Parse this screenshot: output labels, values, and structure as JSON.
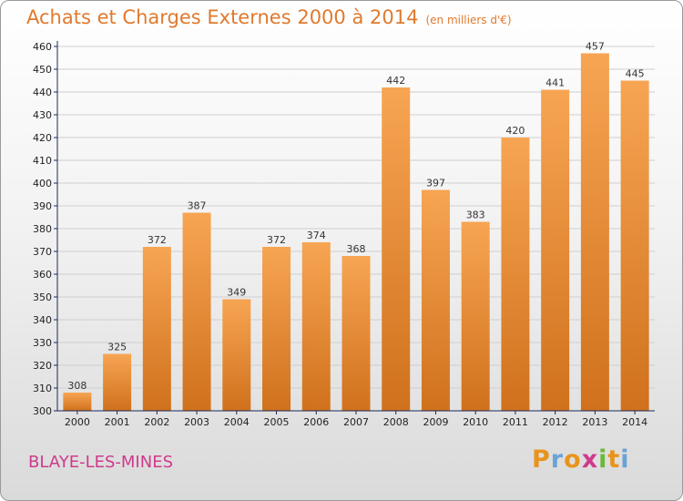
{
  "header": {
    "title": "Achats et Charges Externes 2000 à 2014",
    "subtitle": "(en milliers d'€)"
  },
  "location": {
    "name": "BLAYE-LES-MINES"
  },
  "brand": {
    "letters": [
      "P",
      "r",
      "o",
      "x",
      "i",
      "t",
      "i"
    ],
    "colors": [
      "#e8941c",
      "#6aa3d5",
      "#e8941c",
      "#d03a8c",
      "#6bb83a",
      "#e8941c",
      "#6aa3d5"
    ]
  },
  "chart_data": {
    "type": "bar",
    "title": "Achats et Charges Externes 2000 à 2014",
    "subtitle": "(en milliers d'€)",
    "categories": [
      "2000",
      "2001",
      "2002",
      "2003",
      "2004",
      "2005",
      "2006",
      "2007",
      "2008",
      "2009",
      "2010",
      "2011",
      "2012",
      "2013",
      "2014"
    ],
    "values": [
      308,
      325,
      372,
      387,
      349,
      372,
      374,
      368,
      442,
      397,
      383,
      420,
      441,
      457,
      445
    ],
    "ylim": [
      300,
      460
    ],
    "yticks": [
      300,
      310,
      320,
      330,
      340,
      350,
      360,
      370,
      380,
      390,
      400,
      410,
      420,
      430,
      440,
      450,
      460
    ],
    "grid": true,
    "bar_color_top": "#f7a553",
    "bar_color_bottom": "#d0711c",
    "axis_color": "#1a2a5a"
  }
}
